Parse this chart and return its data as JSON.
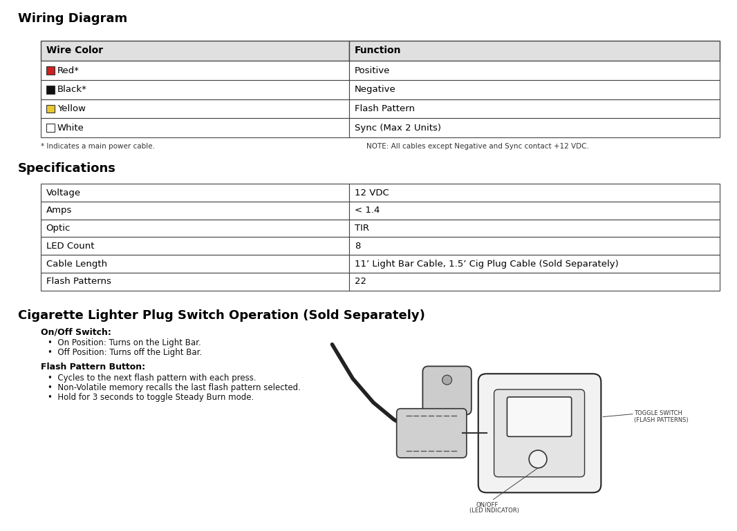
{
  "title_wiring": "Wiring Diagram",
  "title_specs": "Specifications",
  "title_cig": "Cigarette Lighter Plug Switch Operation (Sold Separately)",
  "bg_color": "#ffffff",
  "wire_table": {
    "headers": [
      "Wire Color",
      "Function"
    ],
    "rows": [
      {
        "color_name": "Red*",
        "color_hex": "#cc2222",
        "function": "Positive"
      },
      {
        "color_name": "Black*",
        "color_hex": "#111111",
        "function": "Negative"
      },
      {
        "color_name": "Yellow",
        "color_hex": "#e8c830",
        "function": "Flash Pattern"
      },
      {
        "color_name": "White",
        "color_hex": "#ffffff",
        "function": "Sync (Max 2 Units)"
      }
    ],
    "footnote_left": "* Indicates a main power cable.",
    "footnote_right": "NOTE: All cables except Negative and Sync contact +12 VDC."
  },
  "spec_table": {
    "rows": [
      [
        "Voltage",
        "12 VDC"
      ],
      [
        "Amps",
        "< 1.4"
      ],
      [
        "Optic",
        "TIR"
      ],
      [
        "LED Count",
        "8"
      ],
      [
        "Cable Length",
        "11’ Light Bar Cable, 1.5’ Cig Plug Cable (Sold Separately)"
      ],
      [
        "Flash Patterns",
        "22"
      ]
    ]
  },
  "cig_section": {
    "onoff_label": "On/Off Switch:",
    "onoff_bullets": [
      "On Position: Turns on the Light Bar.",
      "Off Position: Turns off the Light Bar."
    ],
    "flash_label": "Flash Pattern Button:",
    "flash_bullets": [
      "Cycles to the next flash pattern with each press.",
      "Non-Volatile memory recalls the last flash pattern selected.",
      "Hold for 3 seconds to toggle Steady Burn mode."
    ]
  }
}
